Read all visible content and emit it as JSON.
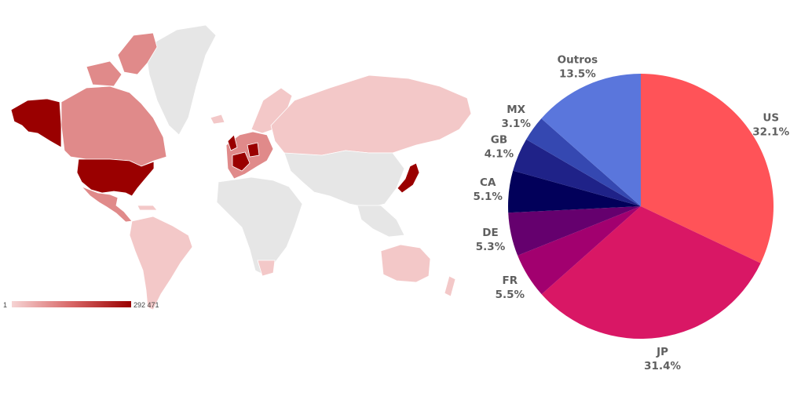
{
  "map": {
    "legend_min": "1",
    "legend_max": "292 471",
    "colors": {
      "no_data": "#e6e6e6",
      "low": "#f3c8c8",
      "mid": "#e08a8a",
      "high": "#9a0000"
    }
  },
  "chart_data": {
    "type": "pie",
    "slices": [
      {
        "label": "US",
        "value": 32.1,
        "value_label": "32.1%",
        "color": "#ff5358"
      },
      {
        "label": "JP",
        "value": 31.4,
        "value_label": "31.4%",
        "color": "#d91765"
      },
      {
        "label": "FR",
        "value": 5.5,
        "value_label": "5.5%",
        "color": "#a2006f"
      },
      {
        "label": "DE",
        "value": 5.3,
        "value_label": "5.3%",
        "color": "#65006e"
      },
      {
        "label": "CA",
        "value": 5.1,
        "value_label": "5.1%",
        "color": "#02005a"
      },
      {
        "label": "GB",
        "value": 4.1,
        "value_label": "4.1%",
        "color": "#1f2288"
      },
      {
        "label": "MX",
        "value": 3.1,
        "value_label": "3.1%",
        "color": "#3548b1"
      },
      {
        "label": "Outros",
        "value": 13.5,
        "value_label": "13.5%",
        "color": "#5a76dc"
      }
    ]
  }
}
